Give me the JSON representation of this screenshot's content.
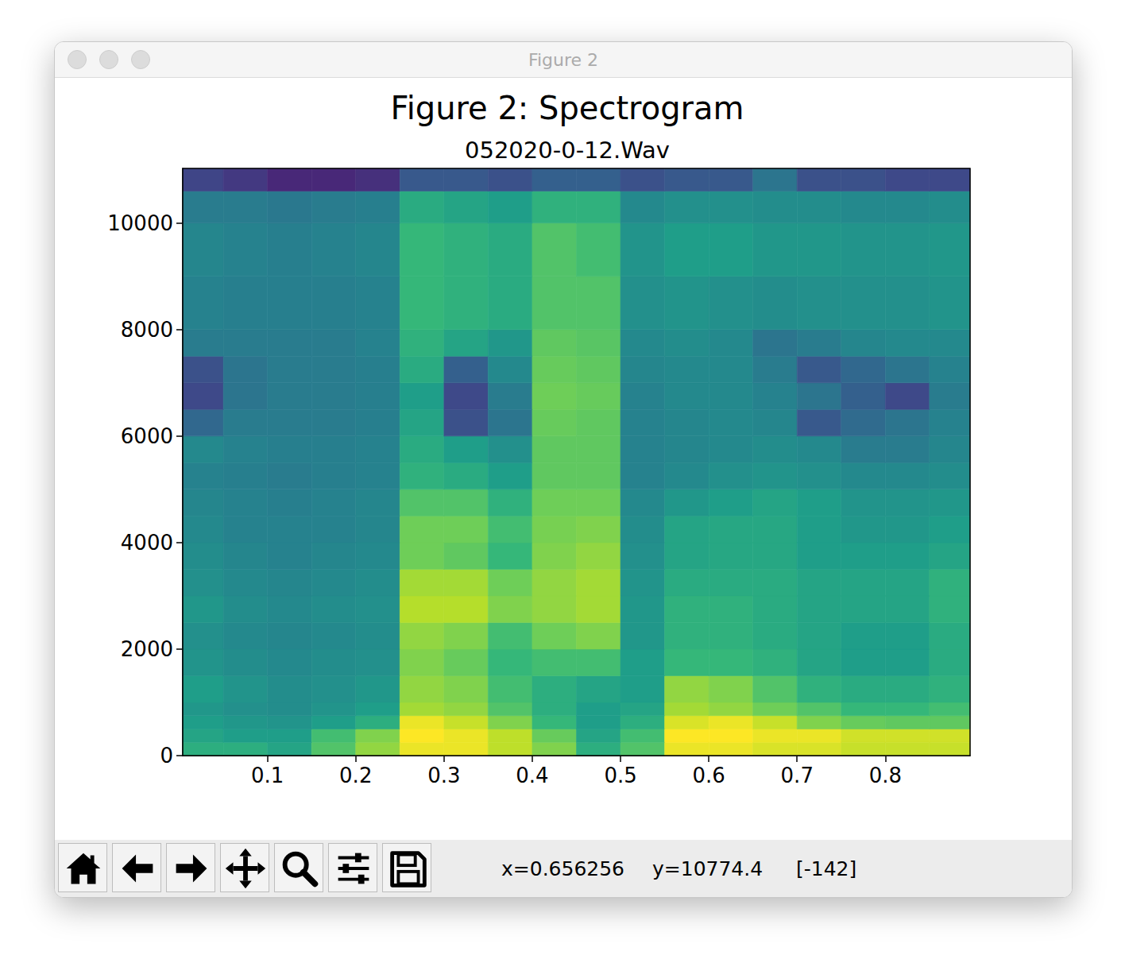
{
  "window": {
    "title": "Figure 2",
    "status": {
      "x": "x=0.656256",
      "y": "y=10774.4",
      "value": "[-142]"
    }
  },
  "chart_data": {
    "type": "heatmap",
    "title": "Figure 2: Spectrogram",
    "subtitle": "052020-0-12.Wav",
    "xlim": [
      0.004,
      0.896
    ],
    "ylim": [
      0,
      11025
    ],
    "xticks": [
      0.1,
      0.2,
      0.3,
      0.4,
      0.5,
      0.6,
      0.7,
      0.8
    ],
    "yticks": [
      0,
      2000,
      4000,
      6000,
      8000,
      10000
    ],
    "grid": false,
    "color_range": [
      -170,
      -98
    ],
    "time_edges": [
      0.004,
      0.05,
      0.1,
      0.15,
      0.2,
      0.25,
      0.3,
      0.35,
      0.4,
      0.45,
      0.5,
      0.55,
      0.6,
      0.65,
      0.7,
      0.75,
      0.8,
      0.85,
      0.896
    ],
    "freq_edges": [
      0,
      250,
      500,
      750,
      1000,
      1500,
      2000,
      2500,
      3000,
      3500,
      4000,
      4500,
      5000,
      5500,
      6000,
      6500,
      7000,
      7500,
      8000,
      9000,
      10000,
      10600,
      11025
    ],
    "cells": [
      [
        -125,
        -125,
        -128,
        -118,
        -110,
        -100,
        -100,
        -105,
        -112,
        -125,
        -118,
        -100,
        -100,
        -102,
        -102,
        -104,
        -104,
        -104
      ],
      [
        -128,
        -130,
        -130,
        -120,
        -112,
        -98,
        -100,
        -105,
        -115,
        -128,
        -120,
        -98,
        -98,
        -100,
        -100,
        -103,
        -103,
        -103
      ],
      [
        -130,
        -132,
        -133,
        -130,
        -125,
        -100,
        -104,
        -112,
        -122,
        -130,
        -125,
        -102,
        -100,
        -104,
        -112,
        -115,
        -116,
        -116
      ],
      [
        -132,
        -134,
        -135,
        -133,
        -130,
        -108,
        -110,
        -118,
        -125,
        -130,
        -128,
        -108,
        -110,
        -114,
        -118,
        -122,
        -122,
        -120
      ],
      [
        -130,
        -133,
        -135,
        -134,
        -132,
        -110,
        -112,
        -120,
        -125,
        -128,
        -130,
        -110,
        -112,
        -118,
        -124,
        -126,
        -126,
        -124
      ],
      [
        -133,
        -135,
        -136,
        -135,
        -134,
        -112,
        -115,
        -122,
        -120,
        -120,
        -130,
        -122,
        -122,
        -124,
        -128,
        -130,
        -130,
        -126
      ],
      [
        -134,
        -136,
        -137,
        -136,
        -135,
        -110,
        -112,
        -120,
        -114,
        -112,
        -132,
        -124,
        -124,
        -126,
        -128,
        -130,
        -130,
        -126
      ],
      [
        -132,
        -135,
        -136,
        -135,
        -134,
        -106,
        -106,
        -112,
        -110,
        -108,
        -132,
        -124,
        -124,
        -126,
        -128,
        -128,
        -128,
        -124
      ],
      [
        -134,
        -136,
        -137,
        -136,
        -135,
        -108,
        -108,
        -114,
        -110,
        -108,
        -133,
        -126,
        -126,
        -126,
        -128,
        -128,
        -128,
        -124
      ],
      [
        -135,
        -137,
        -138,
        -137,
        -136,
        -114,
        -116,
        -122,
        -112,
        -110,
        -134,
        -128,
        -127,
        -127,
        -130,
        -130,
        -130,
        -128
      ],
      [
        -136,
        -138,
        -138,
        -138,
        -137,
        -114,
        -114,
        -120,
        -113,
        -112,
        -135,
        -128,
        -127,
        -127,
        -130,
        -132,
        -132,
        -130
      ],
      [
        -137,
        -138,
        -139,
        -138,
        -137,
        -118,
        -118,
        -124,
        -114,
        -114,
        -136,
        -132,
        -130,
        -128,
        -130,
        -133,
        -133,
        -132
      ],
      [
        -138,
        -139,
        -140,
        -139,
        -138,
        -124,
        -126,
        -130,
        -116,
        -116,
        -138,
        -136,
        -134,
        -133,
        -134,
        -136,
        -136,
        -135
      ],
      [
        -136,
        -138,
        -139,
        -139,
        -138,
        -126,
        -130,
        -134,
        -116,
        -116,
        -138,
        -137,
        -136,
        -135,
        -136,
        -140,
        -140,
        -137
      ],
      [
        -146,
        -140,
        -140,
        -140,
        -139,
        -128,
        -152,
        -142,
        -115,
        -116,
        -138,
        -137,
        -136,
        -137,
        -150,
        -145,
        -142,
        -138
      ],
      [
        -154,
        -142,
        -140,
        -140,
        -139,
        -130,
        -154,
        -140,
        -114,
        -115,
        -138,
        -136,
        -136,
        -138,
        -142,
        -148,
        -154,
        -140
      ],
      [
        -152,
        -142,
        -140,
        -140,
        -139,
        -126,
        -148,
        -136,
        -115,
        -116,
        -137,
        -136,
        -136,
        -140,
        -150,
        -146,
        -142,
        -138
      ],
      [
        -140,
        -140,
        -140,
        -140,
        -138,
        -124,
        -128,
        -132,
        -116,
        -117,
        -136,
        -135,
        -136,
        -142,
        -140,
        -137,
        -136,
        -136
      ],
      [
        -138,
        -139,
        -139,
        -139,
        -138,
        -122,
        -124,
        -126,
        -118,
        -118,
        -134,
        -133,
        -134,
        -135,
        -134,
        -134,
        -134,
        -133
      ],
      [
        -137,
        -138,
        -139,
        -138,
        -137,
        -122,
        -124,
        -126,
        -118,
        -120,
        -133,
        -130,
        -130,
        -132,
        -132,
        -133,
        -133,
        -132
      ],
      [
        -140,
        -140,
        -141,
        -140,
        -139,
        -126,
        -128,
        -130,
        -124,
        -124,
        -136,
        -134,
        -134,
        -135,
        -135,
        -136,
        -136,
        -135
      ],
      [
        -155,
        -158,
        -162,
        -162,
        -160,
        -150,
        -150,
        -152,
        -148,
        -148,
        -152,
        -150,
        -150,
        -142,
        -152,
        -152,
        -154,
        -154
      ]
    ]
  }
}
